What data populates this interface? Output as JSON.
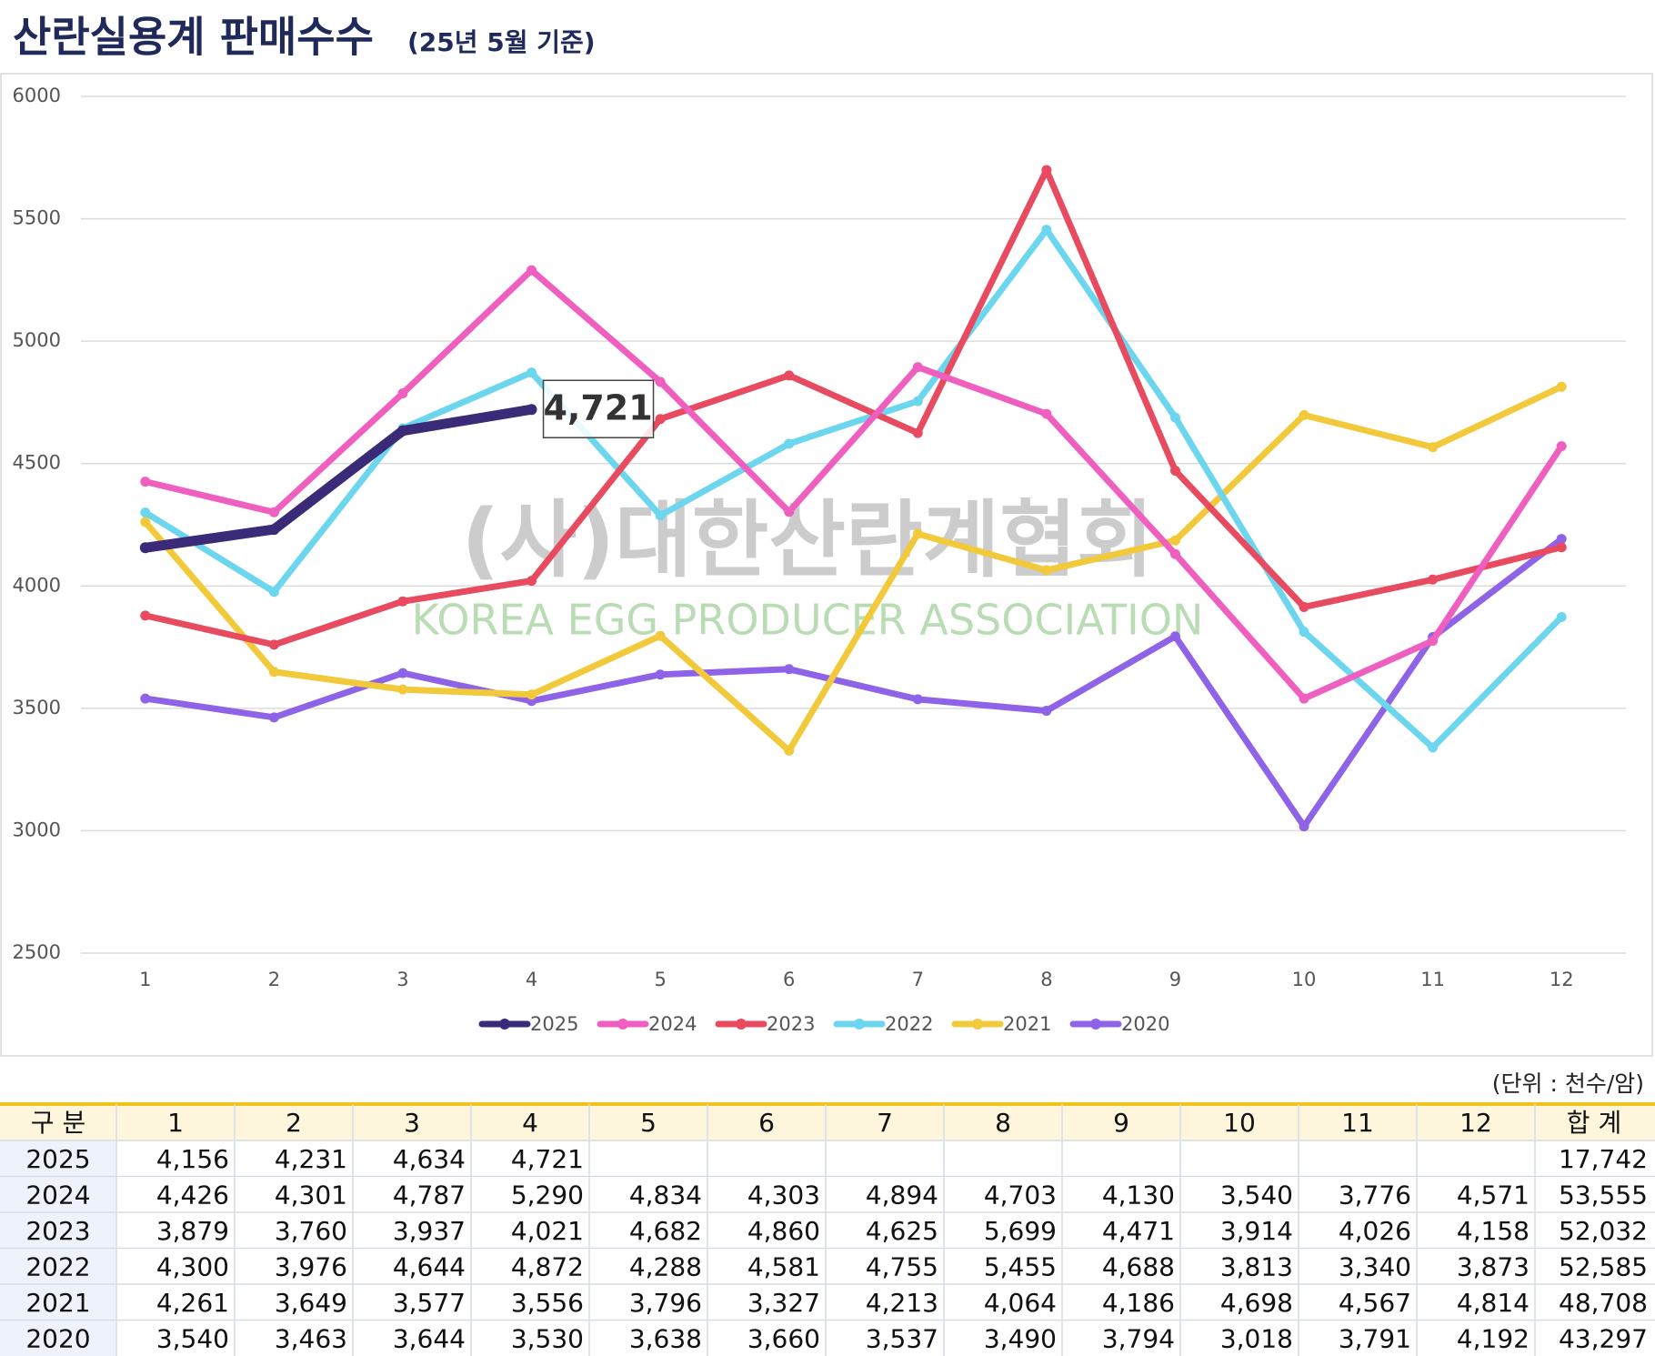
{
  "title": "산란실용계 판매수수",
  "subtitle": "(25년 5월 기준)",
  "chart_data": {
    "type": "line",
    "categories": [
      "1",
      "2",
      "3",
      "4",
      "5",
      "6",
      "7",
      "8",
      "9",
      "10",
      "11",
      "12"
    ],
    "ylim": [
      2500,
      6000
    ],
    "yticks": [
      2500,
      3000,
      3500,
      4000,
      4500,
      5000,
      5500,
      6000
    ],
    "grid": true,
    "legend": "bottom",
    "watermark": "(사)대한산란계협회",
    "watermark_subtitle": "KOREA EGG PRODUCER ASSOCIATION",
    "series": [
      {
        "name": "2025",
        "color": "#3a2a78",
        "values": [
          4156,
          4231,
          4634,
          4721,
          null,
          null,
          null,
          null,
          null,
          null,
          null,
          null
        ],
        "value_labels": [
          null,
          null,
          null,
          "4,721",
          null,
          null,
          null,
          null,
          null,
          null,
          null,
          null
        ]
      },
      {
        "name": "2024",
        "color": "#ef5fbf",
        "values": [
          4426,
          4301,
          4787,
          5290,
          4834,
          4303,
          4894,
          4703,
          4130,
          3540,
          3776,
          4571
        ]
      },
      {
        "name": "2023",
        "color": "#e84a5f",
        "values": [
          3879,
          3760,
          3937,
          4021,
          4682,
          4860,
          4625,
          5699,
          4471,
          3914,
          4026,
          4158
        ]
      },
      {
        "name": "2022",
        "color": "#6dd6ef",
        "values": [
          4300,
          3976,
          4644,
          4872,
          4288,
          4581,
          4755,
          5455,
          4688,
          3813,
          3340,
          3873
        ]
      },
      {
        "name": "2021",
        "color": "#f2c93a",
        "values": [
          4261,
          3649,
          3577,
          3556,
          3796,
          3327,
          4213,
          4064,
          4186,
          4698,
          4567,
          4814
        ]
      },
      {
        "name": "2020",
        "color": "#8e63e8",
        "values": [
          3540,
          3463,
          3644,
          3530,
          3638,
          3660,
          3537,
          3490,
          3794,
          3018,
          3791,
          4192
        ]
      }
    ]
  },
  "unit": "(단위 : 천수/암)",
  "table": {
    "header": [
      "구 분",
      "1",
      "2",
      "3",
      "4",
      "5",
      "6",
      "7",
      "8",
      "9",
      "10",
      "11",
      "12",
      "합 계"
    ],
    "rows": [
      [
        "2025",
        "4,156",
        "4,231",
        "4,634",
        "4,721",
        "",
        "",
        "",
        "",
        "",
        "",
        "",
        "",
        "17,742"
      ],
      [
        "2024",
        "4,426",
        "4,301",
        "4,787",
        "5,290",
        "4,834",
        "4,303",
        "4,894",
        "4,703",
        "4,130",
        "3,540",
        "3,776",
        "4,571",
        "53,555"
      ],
      [
        "2023",
        "3,879",
        "3,760",
        "3,937",
        "4,021",
        "4,682",
        "4,860",
        "4,625",
        "5,699",
        "4,471",
        "3,914",
        "4,026",
        "4,158",
        "52,032"
      ],
      [
        "2022",
        "4,300",
        "3,976",
        "4,644",
        "4,872",
        "4,288",
        "4,581",
        "4,755",
        "5,455",
        "4,688",
        "3,813",
        "3,340",
        "3,873",
        "52,585"
      ],
      [
        "2021",
        "4,261",
        "3,649",
        "3,577",
        "3,556",
        "3,796",
        "3,327",
        "4,213",
        "4,064",
        "4,186",
        "4,698",
        "4,567",
        "4,814",
        "48,708"
      ],
      [
        "2020",
        "3,540",
        "3,463",
        "3,644",
        "3,530",
        "3,638",
        "3,660",
        "3,537",
        "3,490",
        "3,794",
        "3,018",
        "3,791",
        "4,192",
        "43,297"
      ]
    ]
  }
}
